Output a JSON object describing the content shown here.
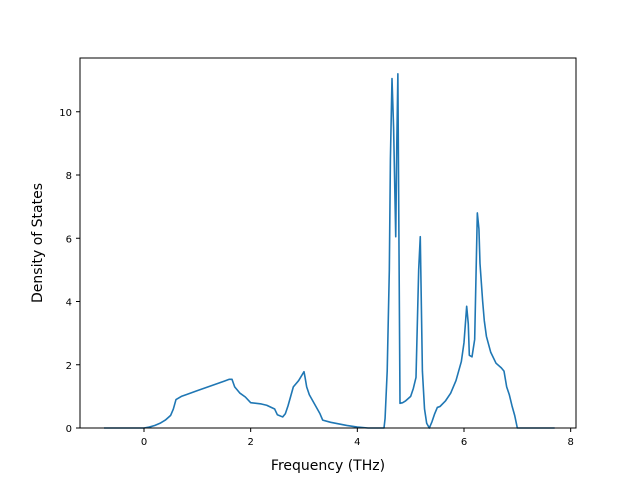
{
  "chart_data": {
    "type": "line",
    "xlabel": "Frequency (THz)",
    "ylabel": "Density of States",
    "xlim": [
      -1.2,
      8.1
    ],
    "ylim": [
      0,
      11.7
    ],
    "xticks": [
      0,
      2,
      4,
      6,
      8
    ],
    "yticks": [
      0,
      2,
      4,
      6,
      8,
      10
    ],
    "xtick_labels": [
      "0",
      "2",
      "4",
      "6",
      "8"
    ],
    "ytick_labels": [
      "0",
      "2",
      "4",
      "6",
      "8",
      "10"
    ],
    "grid": false,
    "color": "#1f77b4",
    "series": [
      {
        "x": [
          -0.75,
          0.0,
          0.1,
          0.2,
          0.3,
          0.4,
          0.5,
          0.55,
          0.6,
          0.7,
          0.8,
          1.0,
          1.2,
          1.4,
          1.5,
          1.6,
          1.65,
          1.7,
          1.8,
          1.9,
          2.0,
          2.2,
          2.3,
          2.45,
          2.5,
          2.6,
          2.65,
          2.7,
          2.75,
          2.8,
          2.9,
          3.0,
          3.02,
          3.05,
          3.1,
          3.2,
          3.3,
          3.35,
          3.5,
          3.8,
          4.0,
          4.2,
          4.4,
          4.5,
          4.52,
          4.56,
          4.6,
          4.62,
          4.65,
          4.68,
          4.72,
          4.74,
          4.76,
          4.8,
          4.85,
          4.9,
          5.0,
          5.05,
          5.1,
          5.15,
          5.18,
          5.22,
          5.26,
          5.3,
          5.35,
          5.4,
          5.45,
          5.5,
          5.55,
          5.65,
          5.75,
          5.85,
          5.95,
          6.0,
          6.05,
          6.08,
          6.1,
          6.15,
          6.2,
          6.25,
          6.28,
          6.3,
          6.35,
          6.38,
          6.42,
          6.5,
          6.6,
          6.7,
          6.75,
          6.8,
          6.85,
          6.9,
          6.95,
          7.0,
          7.05,
          7.1,
          7.3,
          7.5,
          7.7
        ],
        "y": [
          0.0,
          0.0,
          0.03,
          0.08,
          0.15,
          0.25,
          0.4,
          0.6,
          0.9,
          1.0,
          1.06,
          1.18,
          1.3,
          1.42,
          1.48,
          1.54,
          1.54,
          1.3,
          1.1,
          0.98,
          0.8,
          0.76,
          0.72,
          0.6,
          0.42,
          0.35,
          0.45,
          0.7,
          1.0,
          1.3,
          1.5,
          1.78,
          1.6,
          1.3,
          1.05,
          0.75,
          0.45,
          0.25,
          0.18,
          0.08,
          0.03,
          0.0,
          0.0,
          0.0,
          0.3,
          1.8,
          5.0,
          8.5,
          11.05,
          9.5,
          6.05,
          9.0,
          11.2,
          0.78,
          0.8,
          0.85,
          1.0,
          1.25,
          1.6,
          5.0,
          6.05,
          1.8,
          0.6,
          0.15,
          0.0,
          0.2,
          0.45,
          0.65,
          0.68,
          0.85,
          1.1,
          1.5,
          2.1,
          2.7,
          3.85,
          3.3,
          2.3,
          2.25,
          2.8,
          6.8,
          6.3,
          5.2,
          4.0,
          3.4,
          2.9,
          2.4,
          2.05,
          1.9,
          1.8,
          1.3,
          1.05,
          0.7,
          0.4,
          0.0,
          0.0,
          0.0,
          0.0,
          0.0,
          0.0
        ]
      }
    ]
  }
}
